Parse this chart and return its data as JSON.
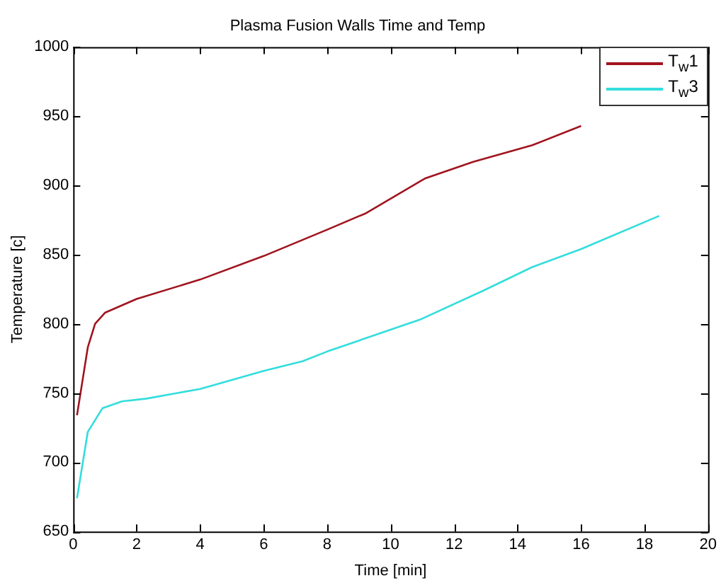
{
  "chart_data": {
    "type": "line",
    "title": "Plasma Fusion Walls Time and Temp",
    "xlabel": "Time [min]",
    "ylabel": "Temperature [c]",
    "xlim": [
      0,
      20
    ],
    "xticks": [
      0,
      2,
      4,
      6,
      8,
      10,
      12,
      14,
      16,
      18,
      20
    ],
    "ylim": [
      650,
      1000
    ],
    "yticks": [
      650,
      700,
      750,
      800,
      850,
      900,
      950,
      1000
    ],
    "grid": false,
    "legend": "top right",
    "marker": "none",
    "line_style": "solid",
    "series": [
      {
        "name": "T$_{w}$1",
        "color": "#a0141e",
        "x": [
          0.12,
          0.46,
          0.69,
          1.0,
          2,
          4,
          6,
          8,
          9.23,
          11.08,
          12.6,
          14.46,
          16
        ],
        "values": [
          734,
          783,
          800,
          808,
          818,
          832,
          849,
          868,
          880,
          905,
          917,
          929,
          943
        ]
      },
      {
        "name": "T$_{w}$3",
        "color": "#33dddd",
        "x": [
          0.12,
          0.46,
          0.92,
          1.54,
          2.31,
          4,
          6,
          7.23,
          8,
          10.92,
          12.92,
          14.46,
          16,
          18.46
        ],
        "values": [
          674,
          722,
          739,
          744,
          746,
          753,
          766,
          773,
          780,
          803,
          824,
          841,
          854,
          878
        ]
      }
    ]
  }
}
